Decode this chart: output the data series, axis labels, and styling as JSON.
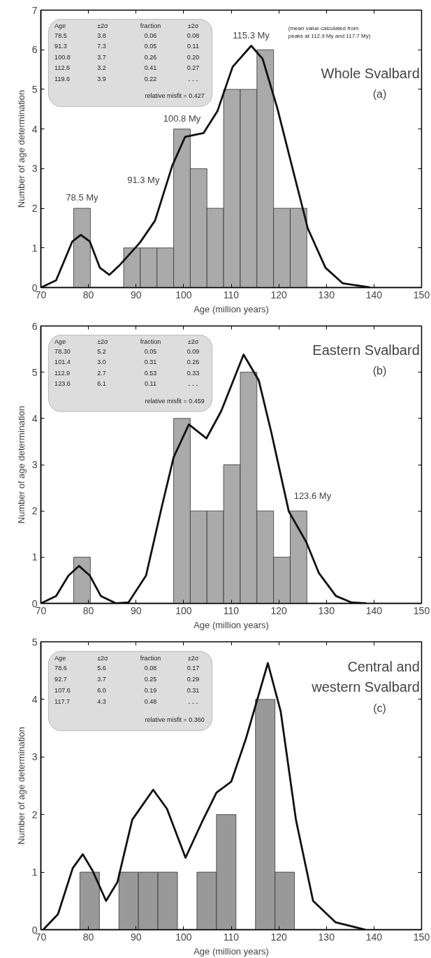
{
  "chart_data": [
    {
      "type": "histogram",
      "title": "Whole Svalbard",
      "subtitle": "(a)",
      "xlabel": "Age (million years)",
      "ylabel": "Number of age determination",
      "xlim": [
        70,
        150
      ],
      "xticks": [
        70,
        80,
        90,
        100,
        110,
        120,
        130,
        140,
        150
      ],
      "ylim": [
        0,
        7
      ],
      "yticks": [
        0,
        1,
        2,
        3,
        4,
        5,
        6,
        7
      ],
      "grid": false,
      "bins": [
        76.9,
        80.4,
        83.9,
        87.4,
        90.9,
        94.4,
        97.9,
        101.4,
        104.9,
        108.4,
        111.9,
        115.4,
        118.9,
        122.4,
        125.9
      ],
      "series": [
        {
          "color": "#aaaaaa",
          "values": [
            2,
            0,
            0,
            1,
            1,
            1,
            4,
            3,
            2,
            5,
            5,
            6,
            2,
            2
          ]
        },
        {
          "type": "line",
          "color": "#111111",
          "x": [
            70,
            73.2,
            76.6,
            78.4,
            80.3,
            82.4,
            84.4,
            86.6,
            90.8,
            94,
            97.6,
            100.3,
            104.2,
            107.1,
            110.3,
            114.2,
            116.6,
            119.7,
            122.9,
            126.1,
            129.8,
            133.4,
            139.2
          ],
          "values": [
            0,
            0.18,
            1.16,
            1.33,
            1.16,
            0.5,
            0.32,
            0.57,
            1.13,
            1.69,
            3.07,
            3.8,
            3.9,
            4.45,
            5.57,
            6.1,
            5.77,
            4.52,
            3.0,
            1.49,
            0.5,
            0.11,
            0
          ]
        }
      ],
      "annotations": [
        "Age",
        "±2σ",
        "fraction",
        "±2σ",
        "78.5",
        "3.8",
        "0.06",
        "0.08",
        "91.3",
        "7.3",
        "0.05",
        "0.11",
        "100.8",
        "3.7",
        "0.26",
        "0.20",
        "112.6",
        "3.2",
        "0.41",
        "0.27",
        "119.6",
        "3.9",
        "0.22",
        "- - -",
        "relative misfit = 0.427",
        "(mean value calculated from peaks at 112.9 My and 117.7 My)",
        {
          "text": "78.5 My",
          "x": 78.65,
          "y": 2
        },
        {
          "text": "91.3 My",
          "x": 96.7,
          "y": 2.71
        },
        {
          "text": "100.8 My",
          "x": 99.65,
          "y": 4
        },
        {
          "text": "115.3 My",
          "x": 114.2,
          "y": 6.1
        }
      ]
    },
    {
      "type": "histogram",
      "title": "Eastern Svalbard",
      "subtitle": "(b)",
      "xlabel": "Age (million years)",
      "ylabel": "Number of age determination",
      "xlim": [
        70,
        150
      ],
      "xticks": [
        70,
        80,
        90,
        100,
        110,
        120,
        130,
        140,
        150
      ],
      "ylim": [
        0,
        6
      ],
      "yticks": [
        0,
        1,
        2,
        3,
        4,
        5,
        6
      ],
      "grid": false,
      "bins": [
        76.9,
        80.4,
        83.9,
        87.4,
        90.9,
        94.4,
        97.9,
        101.4,
        104.9,
        108.4,
        111.9,
        115.4,
        118.9,
        122.4,
        125.9
      ],
      "series": [
        {
          "color": "#aaaaaa",
          "values": [
            1,
            0,
            0,
            0,
            0,
            0,
            4,
            2,
            2,
            3,
            5,
            2,
            1,
            2
          ]
        },
        {
          "type": "line",
          "color": "#111111",
          "x": [
            70,
            73.2,
            75.8,
            78,
            80.3,
            82.6,
            85.8,
            88.4,
            92.1,
            95.3,
            97.9,
            101.1,
            104.8,
            107.9,
            112.6,
            115.8,
            118.4,
            122.1,
            125.8,
            128.4,
            132,
            135.3,
            138.4
          ],
          "values": [
            0,
            0.16,
            0.6,
            0.81,
            0.6,
            0.16,
            0,
            0.02,
            0.6,
            2.04,
            3.16,
            3.87,
            3.57,
            4.16,
            5.38,
            4.82,
            3.71,
            1.99,
            1.32,
            0.66,
            0.16,
            0.02,
            0
          ]
        }
      ],
      "annotations": [
        "Age",
        "±2σ",
        "fraction",
        "±2σ",
        "78.30",
        "5.2",
        "0.05",
        "0.09",
        "101.4",
        "3.0",
        "0.31",
        "0.26",
        "112.9",
        "2.7",
        "0.53",
        "0.33",
        "123.6",
        "6.1",
        "0.11",
        "- - -",
        "relative misfit = 0.459",
        {
          "text": "123.6 My",
          "x": 121.4,
          "y": 2.32
        }
      ]
    },
    {
      "type": "histogram",
      "title": "Central and western Svalbard",
      "subtitle": "(c)",
      "xlabel": "Age (million years)",
      "ylabel": "Number of age determination",
      "xlim": [
        70,
        150
      ],
      "xticks": [
        70,
        80,
        90,
        100,
        110,
        120,
        130,
        140,
        150
      ],
      "ylim": [
        0,
        5
      ],
      "yticks": [
        0,
        1,
        2,
        3,
        4,
        5
      ],
      "grid": false,
      "bins": [
        78.2,
        82.3,
        86.4,
        90.5,
        94.6,
        98.7,
        102.8,
        106.9,
        111.0,
        115.1,
        119.2,
        123.3
      ],
      "series": [
        {
          "color": "#999999",
          "values": [
            1,
            0,
            1,
            1,
            1,
            0,
            1,
            2,
            0,
            4,
            1
          ]
        },
        {
          "type": "line",
          "color": "#111111",
          "x": [
            70.5,
            73.6,
            76.7,
            78.8,
            80.9,
            83.7,
            86.1,
            89.2,
            93.6,
            96.5,
            100.4,
            103.8,
            106.9,
            110.0,
            113.1,
            117.7,
            120.4,
            123.6,
            127.2,
            131.9,
            138.2
          ],
          "values": [
            0,
            0.27,
            1.07,
            1.31,
            1.02,
            0.5,
            0.83,
            1.91,
            2.43,
            2.1,
            1.25,
            1.86,
            2.38,
            2.57,
            3.32,
            4.63,
            3.79,
            1.91,
            0.5,
            0.13,
            0
          ]
        }
      ],
      "annotations": [
        "Age",
        "±2σ",
        "fraction",
        "±2σ",
        "78.6",
        "5.6",
        "0.08",
        "0.17",
        "92.7",
        "3.7",
        "0.25",
        "0.29",
        "107.6",
        "6.0",
        "0.19",
        "0.31",
        "117.7",
        "4.3",
        "0.48",
        "- - -",
        "relative misfit = 0.360"
      ]
    }
  ]
}
